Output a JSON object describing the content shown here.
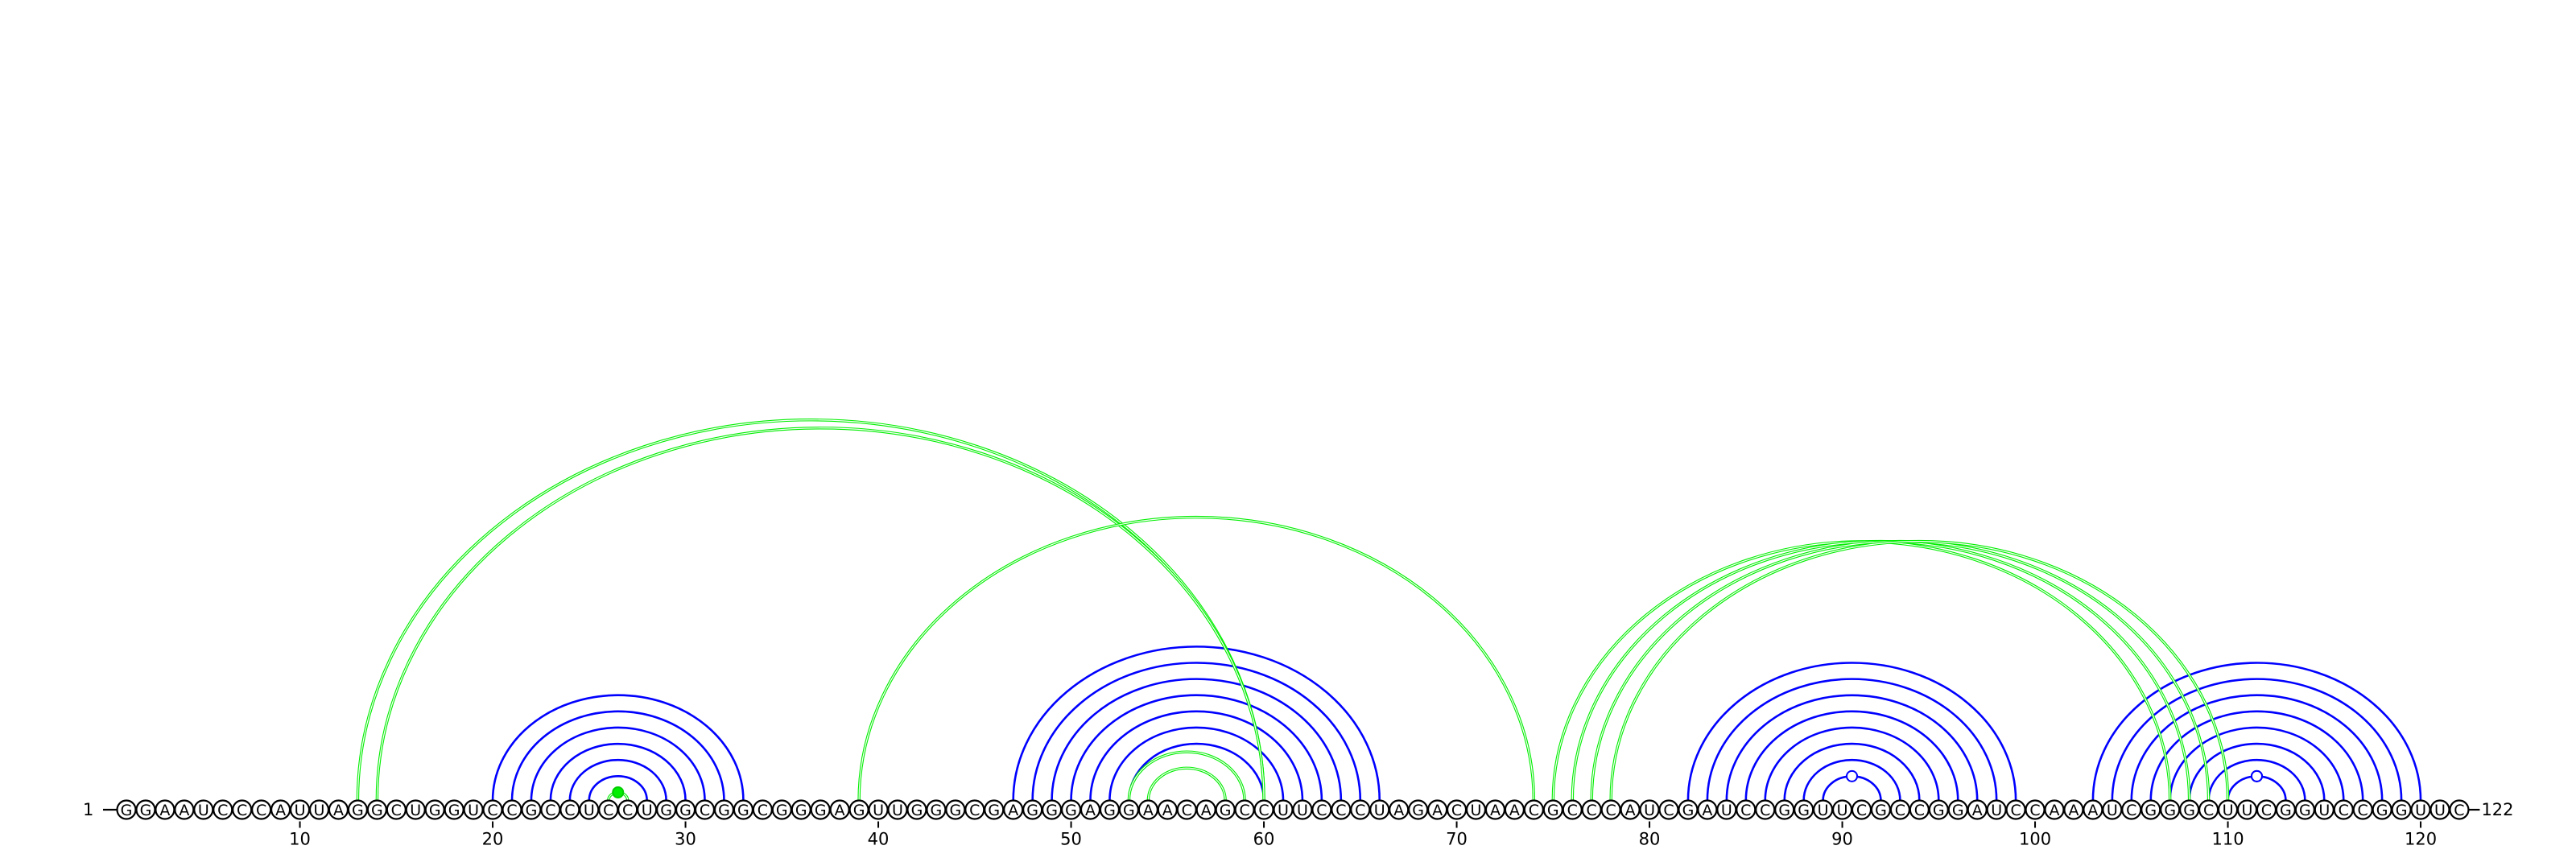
{
  "sequence": "GGAAUCCCAUUAGGCUGGUCCGCCUCCUGGCGGCGGGAGUUGGGCGAGGGAGGAACAGCCUUCCCUAGACUAACGCCCAUCGAUCCGGUUCGCCGGAUCCAAAUCGGGCUUCGGUCCGGUUC",
  "start_label": "1",
  "end_label": "122",
  "ticks": [
    10,
    20,
    30,
    40,
    50,
    60,
    70,
    80,
    90,
    100,
    110,
    120
  ],
  "colors": {
    "blue_arcs": "#0000ff",
    "green_arcs": "#00ee00"
  },
  "blue_pairs": [
    [
      20,
      33
    ],
    [
      21,
      32
    ],
    [
      22,
      31
    ],
    [
      23,
      30
    ],
    [
      24,
      29
    ],
    [
      25,
      28
    ],
    [
      47,
      66
    ],
    [
      48,
      65
    ],
    [
      49,
      64
    ],
    [
      50,
      63
    ],
    [
      51,
      62
    ],
    [
      52,
      61
    ],
    [
      53,
      60
    ],
    [
      82,
      99
    ],
    [
      83,
      98
    ],
    [
      84,
      97
    ],
    [
      85,
      96
    ],
    [
      86,
      95
    ],
    [
      87,
      94
    ],
    [
      88,
      93
    ],
    [
      89,
      92
    ],
    [
      103,
      120
    ],
    [
      104,
      119
    ],
    [
      105,
      118
    ],
    [
      106,
      117
    ],
    [
      107,
      116
    ],
    [
      108,
      115
    ],
    [
      109,
      114
    ],
    [
      110,
      113
    ]
  ],
  "green_pairs": [
    [
      13,
      60
    ],
    [
      14,
      60
    ],
    [
      39,
      74
    ],
    [
      26,
      27
    ],
    [
      53,
      59
    ],
    [
      54,
      58
    ],
    [
      75,
      107
    ],
    [
      76,
      108
    ],
    [
      77,
      109
    ],
    [
      78,
      110
    ]
  ],
  "open_markers": [
    90,
    111,
    112,
    113
  ],
  "filled_markers": [
    26
  ]
}
